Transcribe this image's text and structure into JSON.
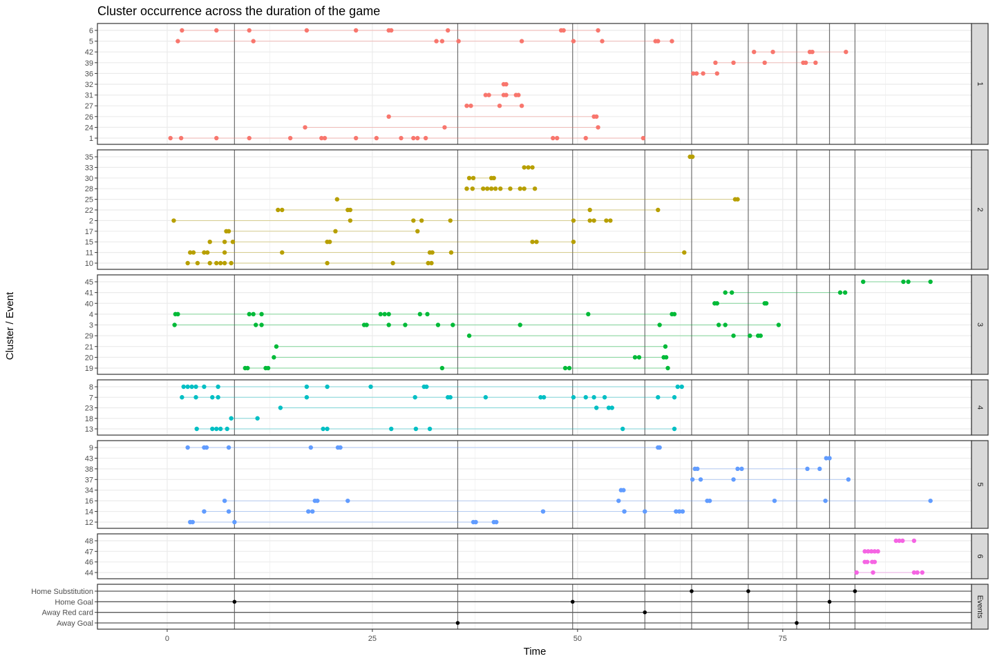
{
  "chart_data": {
    "type": "scatter",
    "title": "Cluster occurrence across the duration of the game",
    "xlabel": "Time",
    "ylabel": "Cluster / Event",
    "xlim": [
      -8.5,
      98
    ],
    "x_ticks": [
      0,
      25,
      50,
      75
    ],
    "grid": true,
    "legend": "none",
    "event_lines_x": [
      8.2,
      35.4,
      49.4,
      58.2,
      63.9,
      70.8,
      76.7,
      80.7,
      83.8
    ],
    "panels": [
      {
        "strip": "1",
        "color": "#F8766D",
        "series": [
          {
            "name": "6",
            "x": [
              1.8,
              6,
              10,
              17,
              23,
              27,
              27.3,
              34.2,
              48,
              48.3,
              52.5
            ]
          },
          {
            "name": "5",
            "x": [
              1.3,
              10.5,
              32.8,
              33.5,
              35.5,
              43.2,
              49.5,
              53,
              59.5,
              59.8,
              61.5
            ]
          },
          {
            "name": "42",
            "x": [
              71.5,
              73.8,
              78.3,
              78.6,
              82.7
            ]
          },
          {
            "name": "39",
            "x": [
              66.8,
              69,
              72.8,
              77.5,
              77.8,
              79
            ]
          },
          {
            "name": "36",
            "x": [
              64.1,
              64.5,
              65.3,
              67
            ]
          },
          {
            "name": "32",
            "x": [
              41,
              41.3
            ]
          },
          {
            "name": "31",
            "x": [
              38.8,
              39.2,
              41,
              41.3,
              42.5,
              42.8
            ]
          },
          {
            "name": "27",
            "x": [
              36.5,
              37,
              40.5,
              43.2
            ]
          },
          {
            "name": "26",
            "x": [
              27,
              52,
              52.3
            ]
          },
          {
            "name": "24",
            "x": [
              16.8,
              33.8,
              52.5
            ]
          },
          {
            "name": "1",
            "x": [
              0.4,
              1.7,
              6,
              10,
              15,
              18.8,
              19.2,
              23,
              25.5,
              28.5,
              30,
              30.5,
              31.5,
              47,
              47.5,
              51,
              58
            ]
          }
        ]
      },
      {
        "strip": "2",
        "color": "#B79F00",
        "series": [
          {
            "name": "35",
            "x": [
              63.7,
              64
            ]
          },
          {
            "name": "33",
            "x": [
              43.5,
              44,
              44.5
            ]
          },
          {
            "name": "30",
            "x": [
              36.8,
              37.3,
              39.5,
              39.8
            ]
          },
          {
            "name": "28",
            "x": [
              36.5,
              37.2,
              38.5,
              39,
              39.5,
              40,
              40.6,
              41.8,
              43,
              43.5,
              44.8
            ]
          },
          {
            "name": "25",
            "x": [
              20.7,
              69.2,
              69.5
            ]
          },
          {
            "name": "22",
            "x": [
              13.5,
              14,
              22,
              22.3,
              51.5,
              59.8
            ]
          },
          {
            "name": "2",
            "x": [
              0.8,
              22.3,
              30,
              31,
              34.5,
              49.5,
              51.5,
              52,
              53.5,
              54
            ]
          },
          {
            "name": "17",
            "x": [
              7.2,
              7.5,
              20.5,
              30.5
            ]
          },
          {
            "name": "15",
            "x": [
              5.2,
              7,
              8,
              19.5,
              19.8,
              44.5,
              45,
              49.5
            ]
          },
          {
            "name": "11",
            "x": [
              2.8,
              3.2,
              4.5,
              4.9,
              7,
              14,
              32,
              32.3,
              34.6,
              63
            ]
          },
          {
            "name": "10",
            "x": [
              2.5,
              3.7,
              5.2,
              6,
              6.5,
              7,
              7.8,
              19.5,
              27.5,
              31.8,
              32.2
            ]
          }
        ]
      },
      {
        "strip": "3",
        "color": "#00BA38",
        "series": [
          {
            "name": "45",
            "x": [
              84.8,
              89.7,
              90.3,
              93
            ]
          },
          {
            "name": "41",
            "x": [
              68,
              68.8,
              82,
              82.6
            ]
          },
          {
            "name": "40",
            "x": [
              66.7,
              67,
              72.8,
              73
            ]
          },
          {
            "name": "4",
            "x": [
              1,
              1.3,
              10,
              10.5,
              11.5,
              26,
              26.5,
              27,
              30.8,
              31.7,
              51.3,
              61.5,
              61.8
            ]
          },
          {
            "name": "3",
            "x": [
              0.9,
              10.8,
              11.5,
              24,
              24.3,
              27,
              29,
              33,
              34.8,
              43,
              60,
              67.2,
              68,
              74.5
            ]
          },
          {
            "name": "29",
            "x": [
              36.8,
              69,
              71,
              72,
              72.3
            ]
          },
          {
            "name": "21",
            "x": [
              13.3,
              60.7
            ]
          },
          {
            "name": "20",
            "x": [
              13,
              57,
              57.5,
              60.5,
              60.8
            ]
          },
          {
            "name": "19",
            "x": [
              9.5,
              9.8,
              12,
              12.3,
              33.5,
              48.5,
              49,
              61
            ]
          }
        ]
      },
      {
        "strip": "4",
        "color": "#00BFC4",
        "series": [
          {
            "name": "8",
            "x": [
              2,
              2.5,
              3,
              3.5,
              4.5,
              6.2,
              17,
              19.5,
              24.8,
              31.3,
              31.6,
              62.2,
              62.7
            ]
          },
          {
            "name": "7",
            "x": [
              1.8,
              3.5,
              5.5,
              6.2,
              17,
              30.2,
              34.2,
              34.5,
              38.8,
              45.5,
              45.9,
              49.5,
              51,
              52,
              53.3,
              59.8,
              61.8
            ]
          },
          {
            "name": "23",
            "x": [
              13.8,
              52.3,
              53.8,
              54.2
            ]
          },
          {
            "name": "18",
            "x": [
              7.8,
              11
            ]
          },
          {
            "name": "13",
            "x": [
              3.6,
              5.5,
              6,
              6.5,
              7.3,
              19,
              19.5,
              27.3,
              30.3,
              32,
              55.5,
              61.8
            ]
          }
        ]
      },
      {
        "strip": "5",
        "color": "#619CFF",
        "series": [
          {
            "name": "9",
            "x": [
              2.5,
              4.5,
              4.8,
              7.5,
              17.5,
              20.8,
              21.1,
              59.8,
              60
            ]
          },
          {
            "name": "43",
            "x": [
              80.3,
              80.7
            ]
          },
          {
            "name": "38",
            "x": [
              64.3,
              64.6,
              69.5,
              70,
              78,
              79.5
            ]
          },
          {
            "name": "37",
            "x": [
              64,
              65,
              69,
              83
            ]
          },
          {
            "name": "34",
            "x": [
              55.3,
              55.6
            ]
          },
          {
            "name": "16",
            "x": [
              7,
              18,
              18.3,
              22,
              55,
              65.8,
              66.1,
              74,
              80.2,
              93
            ]
          },
          {
            "name": "14",
            "x": [
              4.5,
              7.5,
              17.2,
              17.7,
              45.8,
              55.7,
              58.2,
              62,
              62.4,
              62.8
            ]
          },
          {
            "name": "12",
            "x": [
              2.8,
              3.1,
              8.2,
              37.3,
              37.6,
              39.8,
              40.1
            ]
          }
        ]
      },
      {
        "strip": "6",
        "color": "#F564E3",
        "series": [
          {
            "name": "48",
            "x": [
              88.8,
              89.2,
              89.6,
              91
            ]
          },
          {
            "name": "47",
            "x": [
              85,
              85.4,
              85.8,
              86.2,
              86.6
            ]
          },
          {
            "name": "46",
            "x": [
              85,
              85.3,
              85.9,
              86.2
            ]
          },
          {
            "name": "44",
            "x": [
              84,
              86,
              91,
              91.4,
              92
            ]
          }
        ]
      },
      {
        "strip": "Events",
        "color": "#000000",
        "series": [
          {
            "name": "Home Substitution",
            "x": [
              63.9,
              70.8,
              83.8
            ]
          },
          {
            "name": "Home  Goal",
            "x": [
              8.2,
              49.4,
              80.7
            ]
          },
          {
            "name": "Away Red card",
            "x": [
              58.2
            ]
          },
          {
            "name": "Away  Goal",
            "x": [
              35.4,
              76.7
            ]
          }
        ]
      }
    ]
  }
}
